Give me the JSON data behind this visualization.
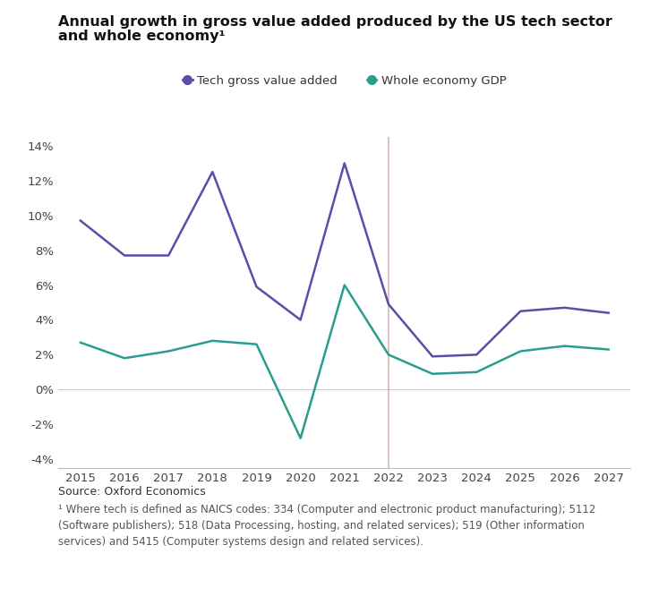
{
  "title_line1": "Annual growth in gross value added produced by the US tech sector",
  "title_line2": "and whole economy¹",
  "source_text": "Source: Oxford Economics",
  "footnote_text": "¹ Where tech is defined as NAICS codes: 334 (Computer and electronic product manufacturing); 5112\n(Software publishers); 518 (Data Processing, hosting, and related services); 519 (Other information\nservices) and 5415 (Computer systems design and related services).",
  "years": [
    2015,
    2016,
    2017,
    2018,
    2019,
    2020,
    2021,
    2022,
    2023,
    2024,
    2025,
    2026,
    2027
  ],
  "tech_gva": [
    0.097,
    0.077,
    0.077,
    0.125,
    0.059,
    0.04,
    0.13,
    0.049,
    0.019,
    0.02,
    0.045,
    0.047,
    0.044
  ],
  "whole_gdp": [
    0.027,
    0.018,
    0.022,
    0.028,
    0.026,
    -0.028,
    0.06,
    0.02,
    0.009,
    0.01,
    0.022,
    0.025,
    0.023
  ],
  "tech_color": "#5b4ea8",
  "gdp_color": "#2a9d8f",
  "vline_x": 2022,
  "vline_color": "#d4b8b8",
  "hline_color": "#cccccc",
  "ylim": [
    -0.045,
    0.145
  ],
  "yticks": [
    -0.04,
    -0.02,
    0.0,
    0.02,
    0.04,
    0.06,
    0.08,
    0.1,
    0.12,
    0.14
  ],
  "legend_tech": "Tech gross value added",
  "legend_gdp": "Whole economy GDP",
  "background_color": "#ffffff",
  "title_fontsize": 11.5,
  "tick_fontsize": 9.5,
  "legend_fontsize": 9.5,
  "source_fontsize": 9,
  "footnote_fontsize": 8.5
}
